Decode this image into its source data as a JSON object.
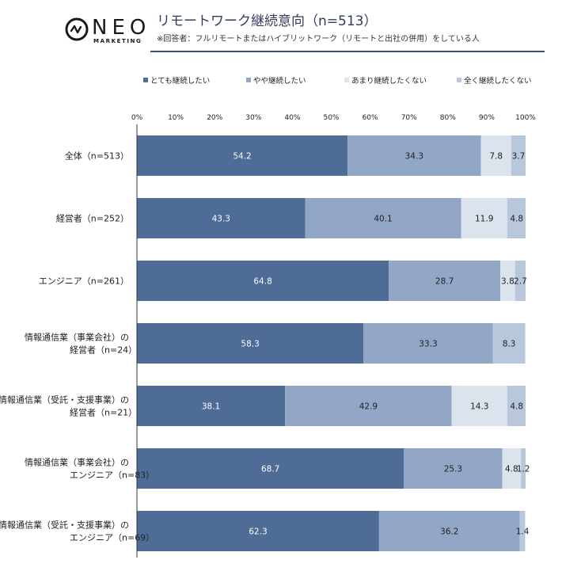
{
  "header": {
    "logo_text": "NEO",
    "logo_sub": "MARKETING",
    "title": "リモートワーク継続意向（n=513）",
    "subtitle": "※回答者：フルリモートまたはハイブリットワーク（リモートと出社の併用）をしている人"
  },
  "colors": {
    "series": [
      "#4f6c96",
      "#92a7c6",
      "#dbe3ec",
      "#b8c7dc"
    ],
    "label_text": [
      "#ffffff",
      "#222222",
      "#222222",
      "#222222"
    ],
    "title_rule": "#3f4e6d"
  },
  "chart_data": {
    "type": "bar",
    "orientation": "horizontal",
    "stacked": true,
    "title": "リモートワーク継続意向（n=513）",
    "xlabel": "",
    "ylabel": "",
    "xlim": [
      0,
      100
    ],
    "x_ticks": [
      "0%",
      "10%",
      "20%",
      "30%",
      "40%",
      "50%",
      "60%",
      "70%",
      "80%",
      "90%",
      "100%"
    ],
    "legend_position": "top",
    "categories": [
      [
        "全体（n=513）"
      ],
      [
        "経営者（n=252）"
      ],
      [
        "エンジニア（n=261）"
      ],
      [
        "情報通信業（事業会社）の",
        "経営者（n=24）"
      ],
      [
        "情報通信業（受託・支援事業）の",
        "経営者（n=21）"
      ],
      [
        "情報通信業（事業会社）の",
        "エンジニア（n=83）"
      ],
      [
        "情報通信業（受託・支援事業）の",
        "エンジニア（n=69）"
      ]
    ],
    "series": [
      {
        "name": "とても継続したい",
        "values": [
          54.2,
          43.3,
          64.8,
          58.3,
          38.1,
          68.7,
          62.3
        ],
        "labels": [
          "54.2",
          "43.3",
          "64.8",
          "58.3",
          "38.1",
          "68.7",
          "62.3"
        ]
      },
      {
        "name": "やや継続したい",
        "values": [
          34.3,
          40.1,
          28.7,
          33.3,
          42.9,
          25.3,
          36.2
        ],
        "labels": [
          "34.3",
          "40.1",
          "28.7",
          "33.3",
          "42.9",
          "25.3",
          "36.2"
        ]
      },
      {
        "name": "あまり継続したくない",
        "values": [
          7.8,
          11.9,
          3.8,
          0,
          14.3,
          4.8,
          0
        ],
        "labels": [
          "7.8",
          "11.9",
          "3.8",
          "",
          "14.3",
          "4.8",
          ""
        ]
      },
      {
        "name": "全く継続したくない",
        "values": [
          3.7,
          4.8,
          2.7,
          8.3,
          4.8,
          1.2,
          1.4
        ],
        "labels": [
          "3.7",
          "4.8",
          "2.7",
          "8.3",
          "4.8",
          "1.2",
          "1.4"
        ]
      }
    ]
  }
}
